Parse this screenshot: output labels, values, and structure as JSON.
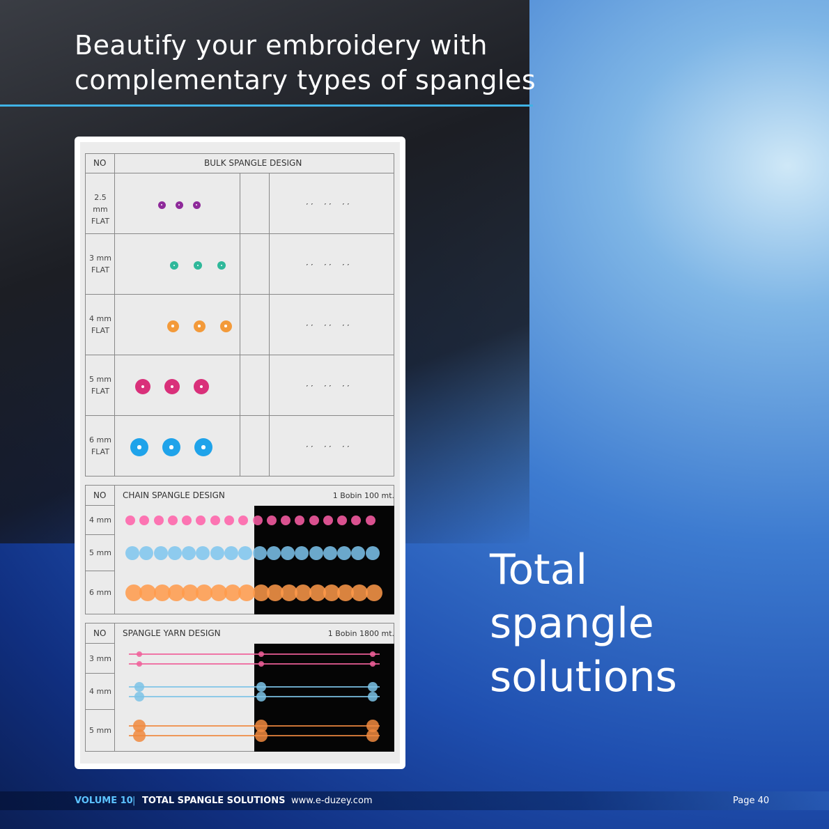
{
  "heading": {
    "line1": "Beautify your embroidery with",
    "line2": "complementary types of spangles"
  },
  "tagline": {
    "line1": "Total",
    "line2": "spangle",
    "line3": "solutions"
  },
  "bulk": {
    "no_header": "NO",
    "title": "BULK SPANGLE DESIGN",
    "rows": [
      {
        "size": "2.5 mm",
        "type": "FLAT",
        "color": "#8e2a9a"
      },
      {
        "size": "3 mm",
        "type": "FLAT",
        "color": "#2fb89a"
      },
      {
        "size": "4 mm",
        "type": "FLAT",
        "color": "#f39a3a"
      },
      {
        "size": "5 mm",
        "type": "FLAT",
        "color": "#d9307a"
      },
      {
        "size": "6 mm",
        "type": "FLAT",
        "color": "#1fa3ea"
      }
    ]
  },
  "chain": {
    "no_header": "NO",
    "title": "CHAIN SPANGLE DESIGN",
    "note": "1 Bobin 100 mt.",
    "rows": [
      {
        "size": "4 mm",
        "color": "#ff5fa8"
      },
      {
        "size": "5 mm",
        "color": "#7ec6ef"
      },
      {
        "size": "6 mm",
        "color": "#ff9a4a"
      }
    ]
  },
  "yarn": {
    "no_header": "NO",
    "title": "SPANGLE YARN DESIGN",
    "note": "1 Bobin 1800 mt.",
    "rows": [
      {
        "size": "3 mm",
        "color": "#f0609a"
      },
      {
        "size": "4 mm",
        "color": "#7cc3e6"
      },
      {
        "size": "5 mm",
        "color": "#f08a40"
      }
    ]
  },
  "footer": {
    "volume": "VOLUME 10",
    "separator": "|",
    "section": "TOTAL SPANGLE SOLUTIONS",
    "website": "www.e-duzey.com",
    "page": "Page 40"
  },
  "colors": {
    "accent": "#3fb3e6",
    "volume": "#5cc3ff"
  }
}
